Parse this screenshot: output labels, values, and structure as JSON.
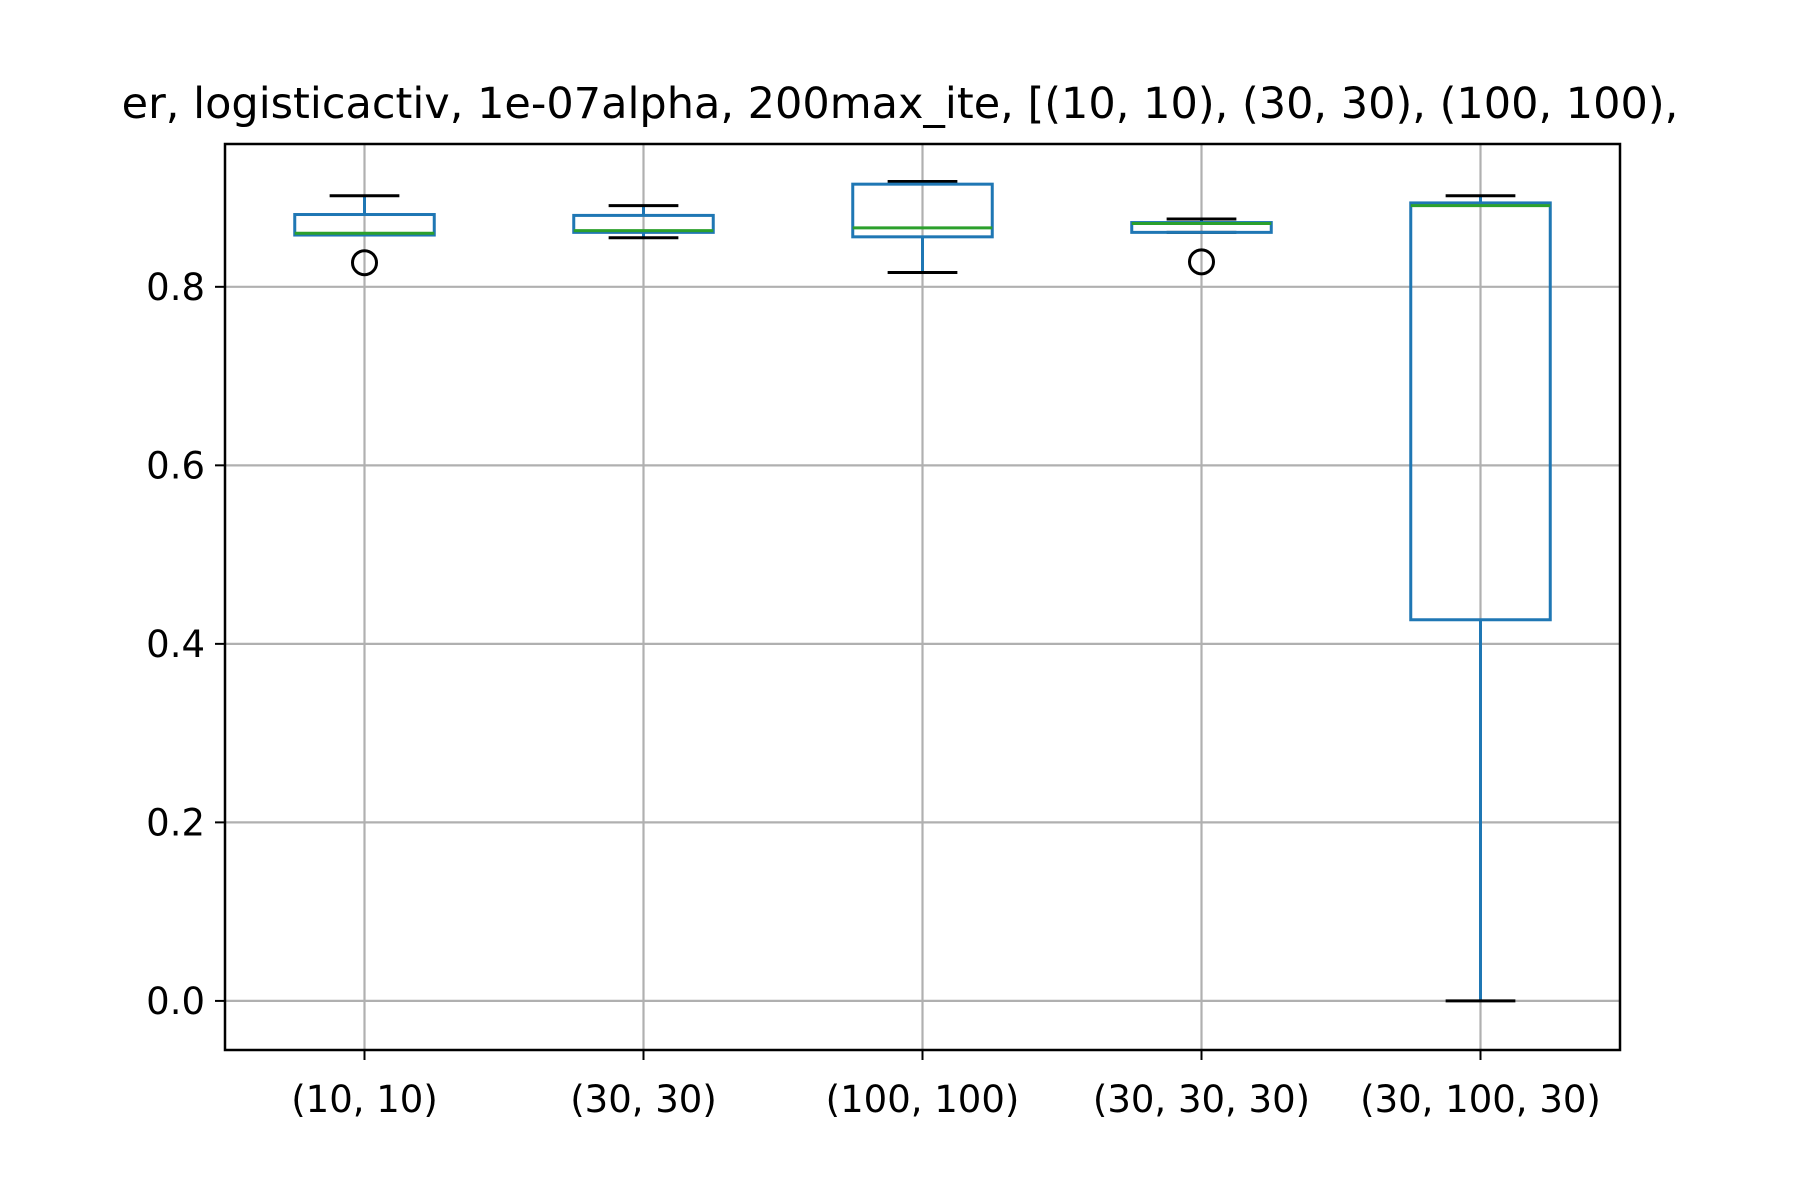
{
  "colors": {
    "box": "#1f77b4",
    "median": "#2ca02c",
    "whisker_cap": "#000000",
    "grid": "#b0b0b0",
    "axes": "#000000",
    "background": "#ffffff"
  },
  "chart_data": {
    "type": "box",
    "title": "er, logisticactiv, 1e-07alpha, 200max_ite, [(10, 10), (30, 30), (100, 100),",
    "xlabel": "",
    "ylabel": "",
    "grid": true,
    "ylim": [
      -0.055,
      0.96
    ],
    "yticks": [
      "0.0",
      "0.2",
      "0.4",
      "0.6",
      "0.8"
    ],
    "categories": [
      "(10, 10)",
      "(30, 30)",
      "(100, 100)",
      "(30, 30, 30)",
      "(30, 100, 30)"
    ],
    "boxes": [
      {
        "whisker_low": 0.858,
        "q1": 0.858,
        "median": 0.86,
        "q3": 0.881,
        "whisker_high": 0.902,
        "outliers": [
          0.827
        ]
      },
      {
        "whisker_low": 0.855,
        "q1": 0.861,
        "median": 0.863,
        "q3": 0.88,
        "whisker_high": 0.891,
        "outliers": []
      },
      {
        "whisker_low": 0.816,
        "q1": 0.856,
        "median": 0.866,
        "q3": 0.915,
        "whisker_high": 0.918,
        "outliers": []
      },
      {
        "whisker_low": 0.861,
        "q1": 0.861,
        "median": 0.871,
        "q3": 0.872,
        "whisker_high": 0.876,
        "outliers": [
          0.828
        ]
      },
      {
        "whisker_low": 0.0,
        "q1": 0.427,
        "median": 0.891,
        "q3": 0.894,
        "whisker_high": 0.902,
        "outliers": []
      }
    ]
  }
}
